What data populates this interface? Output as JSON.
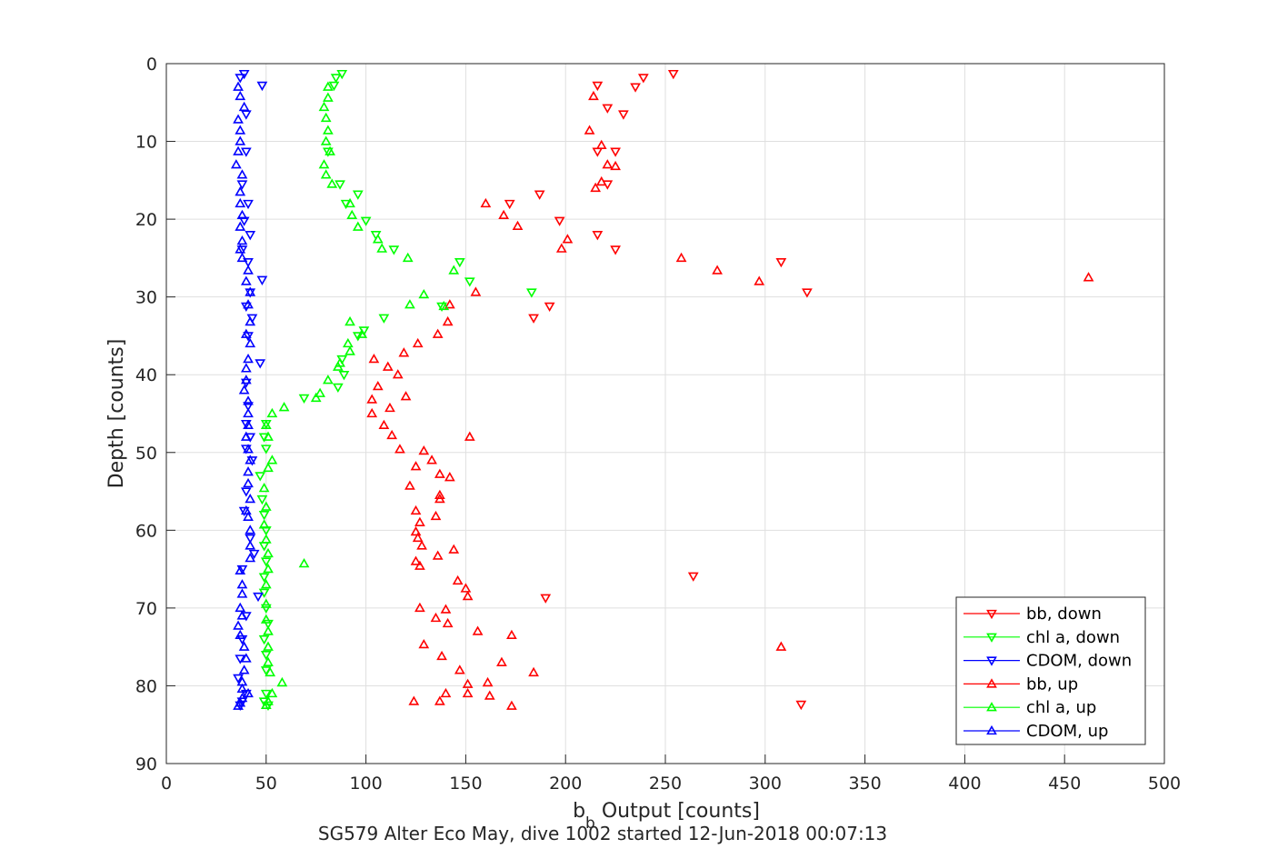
{
  "chart_data": {
    "type": "scatter",
    "xlabel_main": "b",
    "xlabel_sub": "b",
    "xlabel_rest": " Output [counts]",
    "ylabel": "Depth [counts]",
    "footer": "SG579 Alter Eco May, dive 1002 started 12-Jun-2018 00:07:13",
    "xlim": [
      0,
      500
    ],
    "ylim": [
      0,
      90
    ],
    "y_reversed": true,
    "grid": true,
    "legend_position": "bottom-right",
    "xticks": [
      "0",
      "50",
      "100",
      "150",
      "200",
      "250",
      "300",
      "350",
      "400",
      "450",
      "500"
    ],
    "yticks": [
      "0",
      "10",
      "20",
      "30",
      "40",
      "50",
      "60",
      "70",
      "80",
      "90"
    ],
    "series": [
      {
        "name": "bb, down",
        "color": "#ff0000",
        "marker": "down",
        "points": [
          [
            254,
            1.3
          ],
          [
            239,
            1.8
          ],
          [
            216,
            2.8
          ],
          [
            235,
            3
          ],
          [
            221,
            5.7
          ],
          [
            229,
            6.5
          ],
          [
            216,
            11.3
          ],
          [
            225,
            11.3
          ],
          [
            221,
            15.5
          ],
          [
            187,
            16.8
          ],
          [
            172,
            18
          ],
          [
            197,
            20.2
          ],
          [
            216,
            22
          ],
          [
            225,
            23.9
          ],
          [
            308,
            25.5
          ],
          [
            321,
            29.4
          ],
          [
            192,
            31.2
          ],
          [
            184,
            32.7
          ],
          [
            190,
            68.7
          ],
          [
            264,
            65.9
          ],
          [
            318,
            82.4
          ]
        ]
      },
      {
        "name": "chl a, down",
        "color": "#00ff00",
        "marker": "down",
        "points": [
          [
            88,
            1.3
          ],
          [
            85,
            1.8
          ],
          [
            84,
            2.8
          ],
          [
            81,
            11.3
          ],
          [
            87,
            15.5
          ],
          [
            96,
            16.8
          ],
          [
            90,
            18
          ],
          [
            100,
            20.2
          ],
          [
            105,
            22
          ],
          [
            114,
            23.9
          ],
          [
            147,
            25.5
          ],
          [
            152,
            28
          ],
          [
            183,
            29.4
          ],
          [
            138,
            31.2
          ],
          [
            109,
            32.7
          ],
          [
            99,
            34.3
          ],
          [
            96,
            35
          ],
          [
            88,
            38
          ],
          [
            89,
            40
          ],
          [
            86,
            41.6
          ],
          [
            69,
            43
          ],
          [
            50,
            46.3
          ],
          [
            49,
            48
          ],
          [
            50,
            49.5
          ],
          [
            47,
            53
          ],
          [
            48,
            56
          ],
          [
            49,
            58
          ],
          [
            50,
            60
          ],
          [
            49,
            62
          ],
          [
            50,
            64
          ],
          [
            49,
            66
          ],
          [
            49,
            68
          ],
          [
            50,
            70
          ],
          [
            51,
            72
          ],
          [
            49,
            74
          ],
          [
            50,
            76
          ],
          [
            50,
            78
          ],
          [
            50,
            81
          ],
          [
            49,
            82
          ],
          [
            51,
            82.5
          ]
        ]
      },
      {
        "name": "CDOM, down",
        "color": "#0000ff",
        "marker": "down",
        "points": [
          [
            39,
            1.3
          ],
          [
            37,
            1.8
          ],
          [
            48,
            2.8
          ],
          [
            40,
            6.5
          ],
          [
            40,
            11.3
          ],
          [
            38,
            15.5
          ],
          [
            41,
            18
          ],
          [
            39,
            20.2
          ],
          [
            42,
            22
          ],
          [
            38,
            23.9
          ],
          [
            41,
            25.5
          ],
          [
            48,
            27.8
          ],
          [
            42,
            29.4
          ],
          [
            40,
            31.2
          ],
          [
            43,
            32.7
          ],
          [
            41,
            35
          ],
          [
            47,
            38.5
          ],
          [
            40,
            41
          ],
          [
            41,
            44
          ],
          [
            40,
            46.3
          ],
          [
            42,
            48
          ],
          [
            40,
            49.5
          ],
          [
            43,
            51
          ],
          [
            40,
            55
          ],
          [
            39,
            57.5
          ],
          [
            42,
            61
          ],
          [
            44,
            63
          ],
          [
            38,
            65
          ],
          [
            46,
            68.5
          ],
          [
            40,
            71
          ],
          [
            38,
            74
          ],
          [
            37,
            76.5
          ],
          [
            36,
            79
          ],
          [
            40,
            81
          ],
          [
            38,
            82
          ],
          [
            37,
            82.5
          ]
        ]
      },
      {
        "name": "bb, up",
        "color": "#ff0000",
        "marker": "up",
        "points": [
          [
            214,
            4.2
          ],
          [
            218,
            10.5
          ],
          [
            212,
            8.6
          ],
          [
            221,
            13
          ],
          [
            215,
            16
          ],
          [
            225,
            13.2
          ],
          [
            218,
            15.2
          ],
          [
            160,
            18
          ],
          [
            169,
            19.5
          ],
          [
            176,
            20.9
          ],
          [
            201,
            22.6
          ],
          [
            198,
            23.8
          ],
          [
            258,
            25
          ],
          [
            276,
            26.6
          ],
          [
            297,
            28
          ],
          [
            462,
            27.5
          ],
          [
            155,
            29.4
          ],
          [
            142,
            31
          ],
          [
            141,
            33.2
          ],
          [
            136,
            34.8
          ],
          [
            126,
            36
          ],
          [
            119,
            37.2
          ],
          [
            104,
            38
          ],
          [
            111,
            39
          ],
          [
            106,
            41.5
          ],
          [
            116,
            40
          ],
          [
            103,
            43.2
          ],
          [
            112,
            44.3
          ],
          [
            120,
            42.8
          ],
          [
            103,
            45
          ],
          [
            109,
            46.5
          ],
          [
            113,
            47.8
          ],
          [
            117,
            49.6
          ],
          [
            152,
            48
          ],
          [
            129,
            49.8
          ],
          [
            133,
            51
          ],
          [
            125,
            51.8
          ],
          [
            137,
            52.8
          ],
          [
            142,
            53.2
          ],
          [
            122,
            54.3
          ],
          [
            137,
            55.5
          ],
          [
            137,
            56
          ],
          [
            125,
            57.5
          ],
          [
            135,
            58.2
          ],
          [
            127,
            59
          ],
          [
            125,
            60.2
          ],
          [
            126,
            61
          ],
          [
            128,
            62
          ],
          [
            136,
            63.3
          ],
          [
            144,
            62.5
          ],
          [
            125,
            64
          ],
          [
            127,
            64.6
          ],
          [
            146,
            66.5
          ],
          [
            150,
            67.5
          ],
          [
            151,
            68.5
          ],
          [
            127,
            70
          ],
          [
            140,
            70.2
          ],
          [
            135,
            71.3
          ],
          [
            141,
            72
          ],
          [
            156,
            73
          ],
          [
            173,
            73.5
          ],
          [
            129,
            74.7
          ],
          [
            138,
            76.2
          ],
          [
            168,
            77
          ],
          [
            184,
            78.3
          ],
          [
            147,
            78
          ],
          [
            308,
            75
          ],
          [
            161,
            79.6
          ],
          [
            151,
            79.8
          ],
          [
            151,
            81
          ],
          [
            162,
            81.3
          ],
          [
            173,
            82.6
          ],
          [
            124,
            82
          ],
          [
            137,
            82
          ],
          [
            140,
            81
          ]
        ]
      },
      {
        "name": "chl a, up",
        "color": "#00ff00",
        "marker": "up",
        "points": [
          [
            81,
            3
          ],
          [
            81,
            4.4
          ],
          [
            79,
            5.6
          ],
          [
            80,
            7
          ],
          [
            81,
            8.6
          ],
          [
            80,
            10
          ],
          [
            82,
            11.3
          ],
          [
            79,
            13
          ],
          [
            80,
            14.3
          ],
          [
            83,
            15.5
          ],
          [
            92,
            18
          ],
          [
            93,
            19.5
          ],
          [
            96,
            21
          ],
          [
            106,
            22.6
          ],
          [
            108,
            23.8
          ],
          [
            121,
            25
          ],
          [
            144,
            26.6
          ],
          [
            129,
            29.7
          ],
          [
            122,
            31
          ],
          [
            139,
            31.2
          ],
          [
            92,
            33.2
          ],
          [
            98,
            34.8
          ],
          [
            91,
            36
          ],
          [
            92,
            37
          ],
          [
            87,
            38.5
          ],
          [
            86,
            39
          ],
          [
            81,
            40.7
          ],
          [
            77,
            42.4
          ],
          [
            75,
            43
          ],
          [
            59,
            44.2
          ],
          [
            53,
            45
          ],
          [
            50,
            46.5
          ],
          [
            51,
            48
          ],
          [
            53,
            51
          ],
          [
            51,
            52
          ],
          [
            49,
            54.6
          ],
          [
            50,
            57
          ],
          [
            49,
            59.3
          ],
          [
            50,
            61.2
          ],
          [
            51,
            63
          ],
          [
            69,
            64.3
          ],
          [
            51,
            65
          ],
          [
            50,
            67
          ],
          [
            50,
            69.5
          ],
          [
            50,
            71.5
          ],
          [
            51,
            73
          ],
          [
            51,
            75
          ],
          [
            51,
            77
          ],
          [
            52,
            78.3
          ],
          [
            58,
            79.6
          ],
          [
            53,
            81
          ],
          [
            51,
            82
          ],
          [
            50,
            82.5
          ]
        ]
      },
      {
        "name": "CDOM, up",
        "color": "#0000ff",
        "marker": "up",
        "points": [
          [
            36,
            3
          ],
          [
            37,
            4.2
          ],
          [
            39,
            5.6
          ],
          [
            36,
            7.2
          ],
          [
            37,
            8.6
          ],
          [
            37,
            10
          ],
          [
            36,
            11.3
          ],
          [
            35,
            13
          ],
          [
            38,
            14.3
          ],
          [
            37,
            16.5
          ],
          [
            37,
            18
          ],
          [
            38,
            19.5
          ],
          [
            37,
            21
          ],
          [
            38,
            22.8
          ],
          [
            37,
            23.9
          ],
          [
            38,
            25
          ],
          [
            41,
            26.6
          ],
          [
            40,
            28
          ],
          [
            42,
            29.4
          ],
          [
            41,
            31
          ],
          [
            42,
            33.2
          ],
          [
            40,
            34.8
          ],
          [
            42,
            36
          ],
          [
            41,
            38
          ],
          [
            40,
            39.2
          ],
          [
            40,
            40.7
          ],
          [
            39,
            42
          ],
          [
            41,
            43.4
          ],
          [
            41,
            45
          ],
          [
            41,
            46.5
          ],
          [
            40,
            48
          ],
          [
            41,
            49.6
          ],
          [
            42,
            51
          ],
          [
            41,
            52.5
          ],
          [
            41,
            54
          ],
          [
            42,
            56
          ],
          [
            40,
            57.5
          ],
          [
            41,
            58.3
          ],
          [
            42,
            60
          ],
          [
            42,
            62
          ],
          [
            42,
            63.6
          ],
          [
            37,
            65.2
          ],
          [
            38,
            67
          ],
          [
            38,
            68.2
          ],
          [
            37,
            70
          ],
          [
            38,
            71
          ],
          [
            36,
            72.3
          ],
          [
            37,
            73.5
          ],
          [
            39,
            75
          ],
          [
            40,
            76.5
          ],
          [
            39,
            78
          ],
          [
            38,
            79.5
          ],
          [
            38,
            80.4
          ],
          [
            41,
            81
          ],
          [
            38,
            81.6
          ],
          [
            37,
            82.2
          ],
          [
            36,
            82.6
          ]
        ]
      }
    ]
  }
}
